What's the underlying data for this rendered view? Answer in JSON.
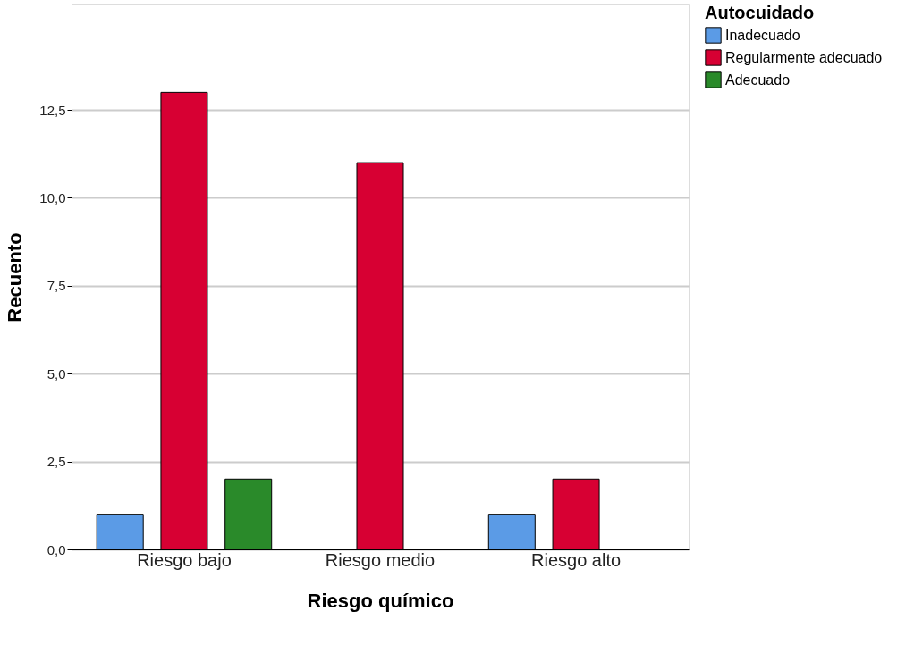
{
  "chart_data": {
    "type": "bar",
    "xlabel": "Riesgo químico",
    "ylabel": "Recuento",
    "legend_title": "Autocuidado",
    "categories": [
      "Riesgo bajo",
      "Riesgo medio",
      "Riesgo alto"
    ],
    "series": [
      {
        "name": "Inadecuado",
        "color": "#5b9be6",
        "values": [
          1,
          null,
          1
        ]
      },
      {
        "name": "Regularmente adecuado",
        "color": "#d70033",
        "values": [
          13,
          11,
          2
        ]
      },
      {
        "name": "Adecuado",
        "color": "#2a8a2a",
        "values": [
          2,
          null,
          null
        ]
      }
    ],
    "ylim": [
      0,
      15.5
    ],
    "yticks": [
      {
        "value": 0,
        "label": "0,0"
      },
      {
        "value": 2.5,
        "label": "2,5"
      },
      {
        "value": 5,
        "label": "5,0"
      },
      {
        "value": 7.5,
        "label": "7,5"
      },
      {
        "value": 10,
        "label": "10,0"
      },
      {
        "value": 12.5,
        "label": "12,5"
      }
    ],
    "grid": "y",
    "legend": "top right"
  }
}
